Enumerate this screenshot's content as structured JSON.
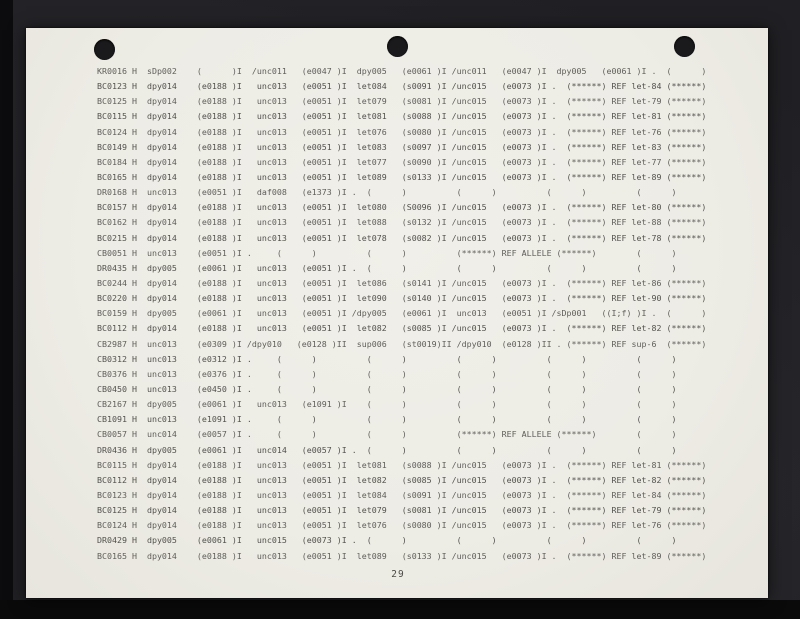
{
  "page": {
    "page_number": "29",
    "colors": {
      "paper": "#edece5",
      "ink": "#4d4b46",
      "background": "#202024",
      "background_left_strip": "#0c0c0e",
      "background_bottom_strip": "#0a0a0b",
      "punch_hole": "#1a1a1d"
    },
    "punch_holes": [
      "left",
      "center",
      "right"
    ],
    "lines": [
      "KR0016 H  sDp002    (      )I  /unc011   (e0047 )I  dpy005   (e0061 )I /unc011   (e0047 )I  dpy005   (e0061 )I .  (      )",
      "BC0123 H  dpy014    (e0188 )I   unc013   (e0051 )I  let084   (s0091 )I /unc015   (e0073 )I .  (******) REF let-84 (******)",
      "BC0125 H  dpy014    (e0188 )I   unc013   (e0051 )I  let079   (s0081 )I /unc015   (e0073 )I .  (******) REF let-79 (******)",
      "BC0115 H  dpy014    (e0188 )I   unc013   (e0051 )I  let081   (s0088 )I /unc015   (e0073 )I .  (******) REF let-81 (******)",
      "BC0124 H  dpy014    (e0188 )I   unc013   (e0051 )I  let076   (s0080 )I /unc015   (e0073 )I .  (******) REF let-76 (******)",
      "BC0149 H  dpy014    (e0188 )I   unc013   (e0051 )I  let083   (s0097 )I /unc015   (e0073 )I .  (******) REF let-83 (******)",
      "BC0184 H  dpy014    (e0188 )I   unc013   (e0051 )I  let077   (s0090 )I /unc015   (e0073 )I .  (******) REF let-77 (******)",
      "BC0165 H  dpy014    (e0188 )I   unc013   (e0051 )I  let089   (s0133 )I /unc015   (e0073 )I .  (******) REF let-89 (******)",
      "DR0168 H  unc013    (e0051 )I   daf008   (e1373 )I .  (      )          (      )          (      )          (      )",
      "BC0157 H  dpy014    (e0188 )I   unc013   (e0051 )I  let080   (S0096 )I /unc015   (e0073 )I .  (******) REF let-80 (******)",
      "BC0162 H  dpy014    (e0188 )I   unc013   (e0051 )I  let088   (s0132 )I /unc015   (e0073 )I .  (******) REF let-88 (******)",
      "BC0215 H  dpy014    (e0188 )I   unc013   (e0051 )I  let078   (s0082 )I /unc015   (e0073 )I .  (******) REF let-78 (******)",
      "CB0051 H  unc013    (e0051 )I .     (      )          (      )          (******) REF ALLELE (******)        (      )",
      "DR0435 H  dpy005    (e0061 )I   unc013   (e0051 )I .  (      )          (      )          (      )          (      )",
      "BC0244 H  dpy014    (e0188 )I   unc013   (e0051 )I  let086   (s0141 )I /unc015   (e0073 )I .  (******) REF let-86 (******)",
      "BC0220 H  dpy014    (e0188 )I   unc013   (e0051 )I  let090   (s0140 )I /unc015   (e0073 )I .  (******) REF let-90 (******)",
      "BC0159 H  dpy005    (e0061 )I   unc013   (e0051 )I /dpy005   (e0061 )I  unc013   (e0051 )I /sDp001   ((I;f) )I .  (      )",
      "BC0112 H  dpy014    (e0188 )I   unc013   (e0051 )I  let082   (s0085 )I /unc015   (e0073 )I .  (******) REF let-82 (******)",
      "CB2987 H  unc013    (e0309 )I /dpy010   (e0128 )II  sup006   (st0019)II /dpy010  (e0128 )II . (******) REF sup-6  (******)",
      "CB0312 H  unc013    (e0312 )I .     (      )          (      )          (      )          (      )          (      )",
      "CB0376 H  unc013    (e0376 )I .     (      )          (      )          (      )          (      )          (      )",
      "CB0450 H  unc013    (e0450 )I .     (      )          (      )          (      )          (      )          (      )",
      "CB2167 H  dpy005    (e0061 )I   unc013   (e1091 )I    (      )          (      )          (      )          (      )",
      "CB1091 H  unc013    (e1091 )I .     (      )          (      )          (      )          (      )          (      )",
      "CB0057 H  unc014    (e0057 )I .     (      )          (      )          (******) REF ALLELE (******)        (      )",
      "DR0436 H  dpy005    (e0061 )I   unc014   (e0057 )I .  (      )          (      )          (      )          (      )",
      "BC0115 H  dpy014    (e0188 )I   unc013   (e0051 )I  let081   (s0088 )I /unc015   (e0073 )I .  (******) REF let-81 (******)",
      "BC0112 H  dpy014    (e0188 )I   unc013   (e0051 )I  let082   (s0085 )I /unc015   (e0073 )I .  (******) REF let-82 (******)",
      "BC0123 H  dpy014    (e0188 )I   unc013   (e0051 )I  let084   (s0091 )I /unc015   (e0073 )I .  (******) REF let-84 (******)",
      "BC0125 H  dpy014    (e0188 )I   unc013   (e0051 )I  let079   (s0081 )I /unc015   (e0073 )I .  (******) REF let-79 (******)",
      "BC0124 H  dpy014    (e0188 )I   unc013   (e0051 )I  let076   (s0080 )I /unc015   (e0073 )I .  (******) REF let-76 (******)",
      "DR0429 H  dpy005    (e0061 )I   unc015   (e0073 )I .  (      )          (      )          (      )          (      )",
      "BC0165 H  dpy014    (e0188 )I   unc013   (e0051 )I  let089   (s0133 )I /unc015   (e0073 )I .  (******) REF let-89 (******)"
    ]
  }
}
